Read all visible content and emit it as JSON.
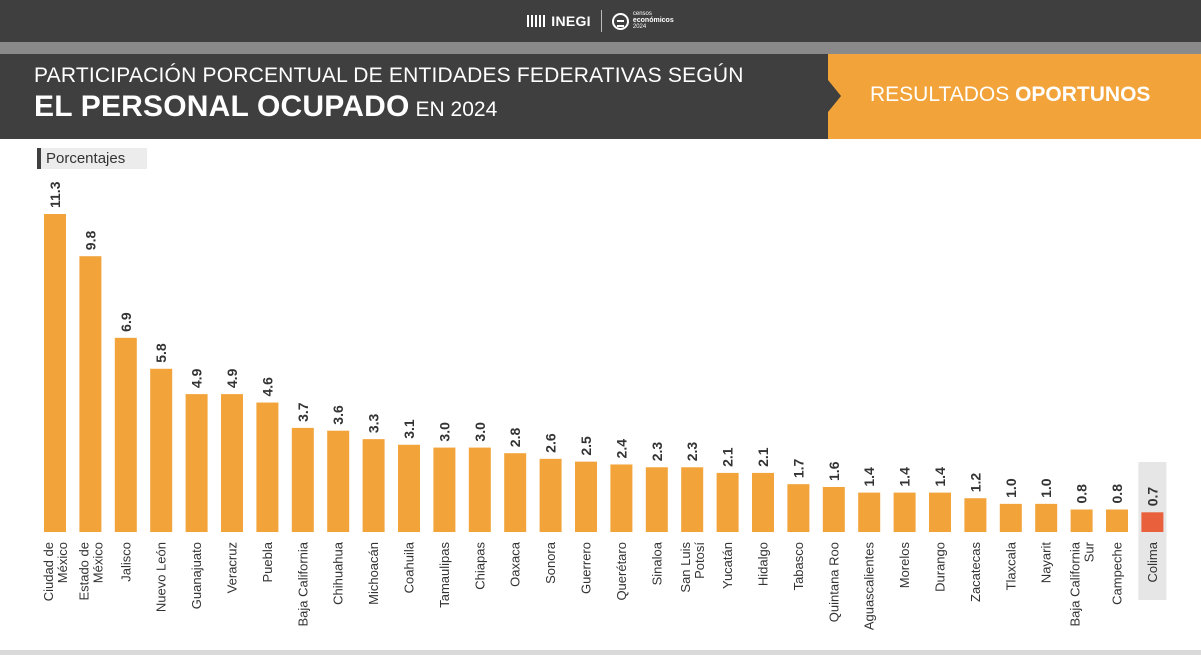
{
  "header": {
    "inegi_logo": "INEGI",
    "censos_logo": [
      "censos",
      "económicos",
      "2024"
    ],
    "title_line1": "PARTICIPACIÓN PORCENTUAL DE ENTIDADES FEDERATIVAS SEGÚN",
    "title_line2_bold": "EL PERSONAL OCUPADO",
    "title_line2_rest": "EN 2024",
    "results_label_regular": "RESULTADOS",
    "results_label_bold": "OPORTUNOS"
  },
  "colors": {
    "bar": "#f2a33a",
    "highlight_bar": "#e8603c",
    "highlight_bg": "#e6e6e6",
    "header_dark": "#3f3f3f",
    "header_orange": "#f2a33a"
  },
  "chart_data": {
    "type": "bar",
    "ylabel": "Porcentajes",
    "ylim": [
      0,
      11.3
    ],
    "categories": [
      "Ciudad de México",
      "Estado de México",
      "Jalisco",
      "Nuevo León",
      "Guanajuato",
      "Veracruz",
      "Puebla",
      "Baja California",
      "Chihuahua",
      "Michoacán",
      "Coahuila",
      "Tamaulipas",
      "Chiapas",
      "Oaxaca",
      "Sonora",
      "Guerrero",
      "Querétaro",
      "Sinaloa",
      "San Luis Potosí",
      "Yucatán",
      "Hidalgo",
      "Tabasco",
      "Quintana Roo",
      "Aguascalientes",
      "Morelos",
      "Durango",
      "Zacatecas",
      "Tlaxcala",
      "Nayarit",
      "Baja California Sur",
      "Campeche",
      "Colima"
    ],
    "category_lines": [
      [
        "Ciudad de",
        "México"
      ],
      [
        "Estado de",
        "México"
      ],
      [
        "Jalisco"
      ],
      [
        "Nuevo León"
      ],
      [
        "Guanajuato"
      ],
      [
        "Veracruz"
      ],
      [
        "Puebla"
      ],
      [
        "Baja California"
      ],
      [
        "Chihuahua"
      ],
      [
        "Michoacán"
      ],
      [
        "Coahuila"
      ],
      [
        "Tamaulipas"
      ],
      [
        "Chiapas"
      ],
      [
        "Oaxaca"
      ],
      [
        "Sonora"
      ],
      [
        "Guerrero"
      ],
      [
        "Querétaro"
      ],
      [
        "Sinaloa"
      ],
      [
        "San Luis",
        "Potosí"
      ],
      [
        "Yucatán"
      ],
      [
        "Hidalgo"
      ],
      [
        "Tabasco"
      ],
      [
        "Quintana Roo"
      ],
      [
        "Aguascalientes"
      ],
      [
        "Morelos"
      ],
      [
        "Durango"
      ],
      [
        "Zacatecas"
      ],
      [
        "Tlaxcala"
      ],
      [
        "Nayarit"
      ],
      [
        "Baja California",
        "Sur"
      ],
      [
        "Campeche"
      ],
      [
        "Colima"
      ]
    ],
    "values": [
      11.3,
      9.8,
      6.9,
      5.8,
      4.9,
      4.9,
      4.6,
      3.7,
      3.6,
      3.3,
      3.1,
      3.0,
      3.0,
      2.8,
      2.6,
      2.5,
      2.4,
      2.3,
      2.3,
      2.1,
      2.1,
      1.7,
      1.6,
      1.4,
      1.4,
      1.4,
      1.2,
      1.0,
      1.0,
      0.8,
      0.8,
      0.7
    ],
    "value_labels": [
      "11.3",
      "9.8",
      "6.9",
      "5.8",
      "4.9",
      "4.9",
      "4.6",
      "3.7",
      "3.6",
      "3.3",
      "3.1",
      "3.0",
      "3.0",
      "2.8",
      "2.6",
      "2.5",
      "2.4",
      "2.3",
      "2.3",
      "2.1",
      "2.1",
      "1.7",
      "1.6",
      "1.4",
      "1.4",
      "1.4",
      "1.2",
      "1.0",
      "1.0",
      "0.8",
      "0.8",
      "0.7"
    ],
    "highlight": "Colima",
    "grid": false,
    "legend": "none"
  }
}
